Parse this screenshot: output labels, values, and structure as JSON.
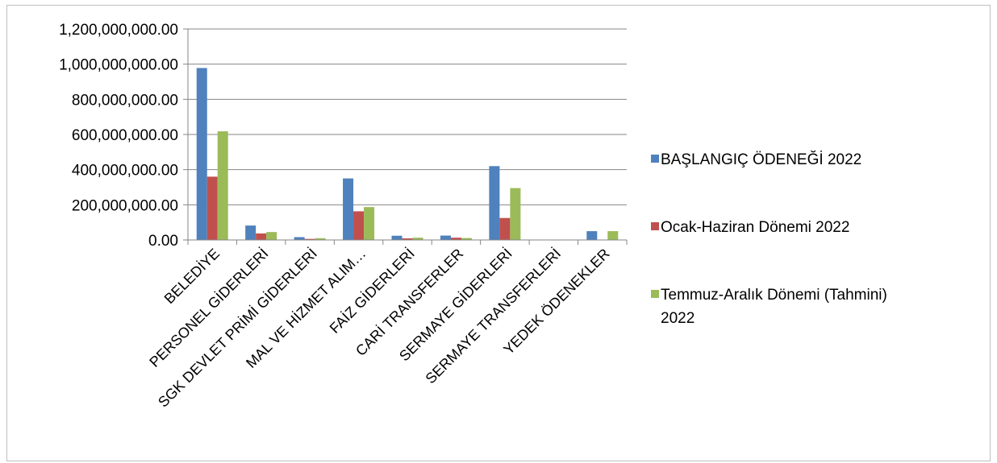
{
  "chart_data": {
    "type": "bar",
    "title": "",
    "xlabel": "",
    "ylabel": "",
    "ylim": [
      0,
      1200000000
    ],
    "yticks": [
      0,
      200000000,
      400000000,
      600000000,
      800000000,
      1000000000,
      1200000000
    ],
    "ytick_labels": [
      "0.00",
      "200,000,000.00",
      "400,000,000.00",
      "600,000,000.00",
      "800,000,000.00",
      "1,000,000,000.00",
      "1,200,000,000.00"
    ],
    "grid": true,
    "legend_position": "right",
    "categories": [
      "BELEDİYE",
      "PERSONEL GİDERLERİ",
      "SGK DEVLET PRİMİ GİDERLERİ",
      "MAL VE HİZMET ALIM…",
      "FAİZ GİDERLERİ",
      "CARİ TRANSFERLER",
      "SERMAYE GİDERLERİ",
      "SERMAYE TRANSFERLERİ",
      "YEDEK ÖDENEKLER"
    ],
    "series": [
      {
        "name": "BAŞLANGIÇ ÖDENEĞİ 2022",
        "color": "#4f81bd",
        "values": [
          978000000,
          82000000,
          16000000,
          350000000,
          24000000,
          25000000,
          420000000,
          0,
          50000000
        ]
      },
      {
        "name": "Ocak-Haziran Dönemi 2022",
        "color": "#c0504d",
        "values": [
          360000000,
          37000000,
          6000000,
          163000000,
          9000000,
          13000000,
          125000000,
          0,
          0
        ]
      },
      {
        "name": "Temmuz-Aralık Dönemi (Tahmini) 2022",
        "color": "#9bbb59",
        "values": [
          618000000,
          45000000,
          10000000,
          187000000,
          13000000,
          11000000,
          295000000,
          0,
          50000000
        ]
      }
    ],
    "legend_lines": [
      [
        "BAŞLANGIÇ ÖDENEĞİ 2022"
      ],
      [
        "Ocak-Haziran Dönemi 2022"
      ],
      [
        "Temmuz-Aralık Dönemi (Tahmini)",
        "2022"
      ]
    ]
  }
}
